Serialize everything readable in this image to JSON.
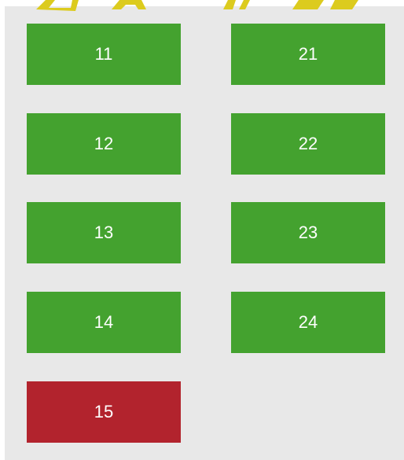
{
  "columns": [
    [
      {
        "label": "11",
        "color": "#44a22f"
      },
      {
        "label": "12",
        "color": "#44a22f"
      },
      {
        "label": "13",
        "color": "#44a22f"
      },
      {
        "label": "14",
        "color": "#44a22f"
      },
      {
        "label": "15",
        "color": "#b2232d"
      }
    ],
    [
      {
        "label": "21",
        "color": "#44a22f"
      },
      {
        "label": "22",
        "color": "#44a22f"
      },
      {
        "label": "23",
        "color": "#44a22f"
      },
      {
        "label": "24",
        "color": "#44a22f"
      }
    ]
  ]
}
